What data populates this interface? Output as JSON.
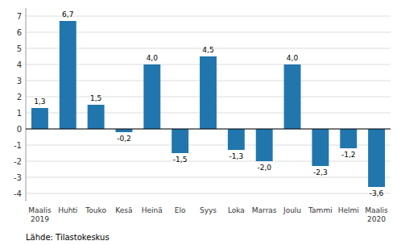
{
  "chart_data": {
    "type": "bar",
    "categories": [
      "Maalis\n2019",
      "Huhti",
      "Touko",
      "Kesä",
      "Heinä",
      "Elo",
      "Syys",
      "Loka",
      "Marras",
      "Joulu",
      "Tammi",
      "Helmi",
      "Maalis\n2020"
    ],
    "values": [
      1.3,
      6.7,
      1.5,
      -0.2,
      4.0,
      -1.5,
      4.5,
      -1.3,
      -2.0,
      4.0,
      -2.3,
      -1.2,
      -3.6
    ],
    "value_labels": [
      "1,3",
      "6,7",
      "1,5",
      "-0,2",
      "4,0",
      "-1,5",
      "4,5",
      "-1,3",
      "-2,0",
      "4,0",
      "-2,3",
      "-1,2",
      "-3,6"
    ],
    "data_labels": true,
    "color": "#2176ae",
    "ylim": [
      -4.5,
      7.5
    ],
    "yticks": [
      -4,
      -3,
      -2,
      -1,
      0,
      1,
      2,
      3,
      4,
      5,
      6,
      7
    ],
    "grid": true,
    "annotations": [
      "Lähde: Tilastokeskus"
    ]
  }
}
